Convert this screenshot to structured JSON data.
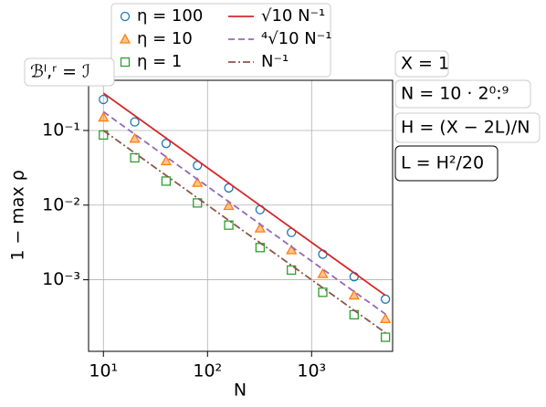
{
  "chart_data": {
    "type": "line",
    "x_label": "N",
    "y_label": "1 − max ρ",
    "xscale": "log",
    "yscale": "log",
    "grid": true,
    "xlim": [
      7.2,
      6000
    ],
    "ylim": [
      0.00011,
      0.47
    ],
    "xticks": [
      {
        "value": 10,
        "label": "10¹"
      },
      {
        "value": 100,
        "label": "10²"
      },
      {
        "value": 1000,
        "label": "10³"
      }
    ],
    "yticks": [
      {
        "value": 0.1,
        "label": "10⁻¹"
      },
      {
        "value": 0.01,
        "label": "10⁻²"
      },
      {
        "value": 0.001,
        "label": "10⁻³"
      }
    ],
    "series": [
      {
        "name": "η = 100",
        "color": "#1f77b4",
        "marker": "circle",
        "x": [
          10,
          20,
          40,
          80,
          160,
          320,
          640,
          1280,
          2560,
          5120
        ],
        "values": [
          0.26,
          0.13,
          0.067,
          0.034,
          0.017,
          0.0087,
          0.0043,
          0.0022,
          0.0011,
          0.00055
        ]
      },
      {
        "name": "η = 10",
        "color": "#ff7f0e",
        "marker": "triangle",
        "x": [
          10,
          20,
          40,
          80,
          160,
          320,
          640,
          1280,
          2560,
          5120
        ],
        "values": [
          0.15,
          0.078,
          0.039,
          0.02,
          0.0098,
          0.0049,
          0.0025,
          0.0012,
          0.00062,
          0.0003
        ]
      },
      {
        "name": "η = 1",
        "color": "#2ca02c",
        "marker": "square",
        "x": [
          10,
          20,
          40,
          80,
          160,
          320,
          640,
          1280,
          2560,
          5120
        ],
        "values": [
          0.087,
          0.043,
          0.021,
          0.0107,
          0.0054,
          0.0027,
          0.00135,
          0.00068,
          0.00034,
          0.00017
        ]
      },
      {
        "name": "√10 N⁻¹",
        "color": "#d62728",
        "linestyle": "solid",
        "x": [
          10,
          5120
        ],
        "values": [
          0.316,
          0.000618
        ]
      },
      {
        "name": "⁴√10 N⁻¹",
        "color": "#9467bd",
        "linestyle": "dashed",
        "x": [
          10,
          5120
        ],
        "values": [
          0.178,
          0.000347
        ]
      },
      {
        "name": "N⁻¹",
        "color": "#8c564b",
        "linestyle": "dashdot",
        "x": [
          10,
          5120
        ],
        "values": [
          0.1,
          0.000195
        ]
      }
    ],
    "annotations": [
      "ℬˡ,ʳ = ℐ",
      "X = 1",
      "N = 10 · 2⁰:⁹",
      "H = (X − 2L)/N",
      "L = H²/20"
    ]
  }
}
